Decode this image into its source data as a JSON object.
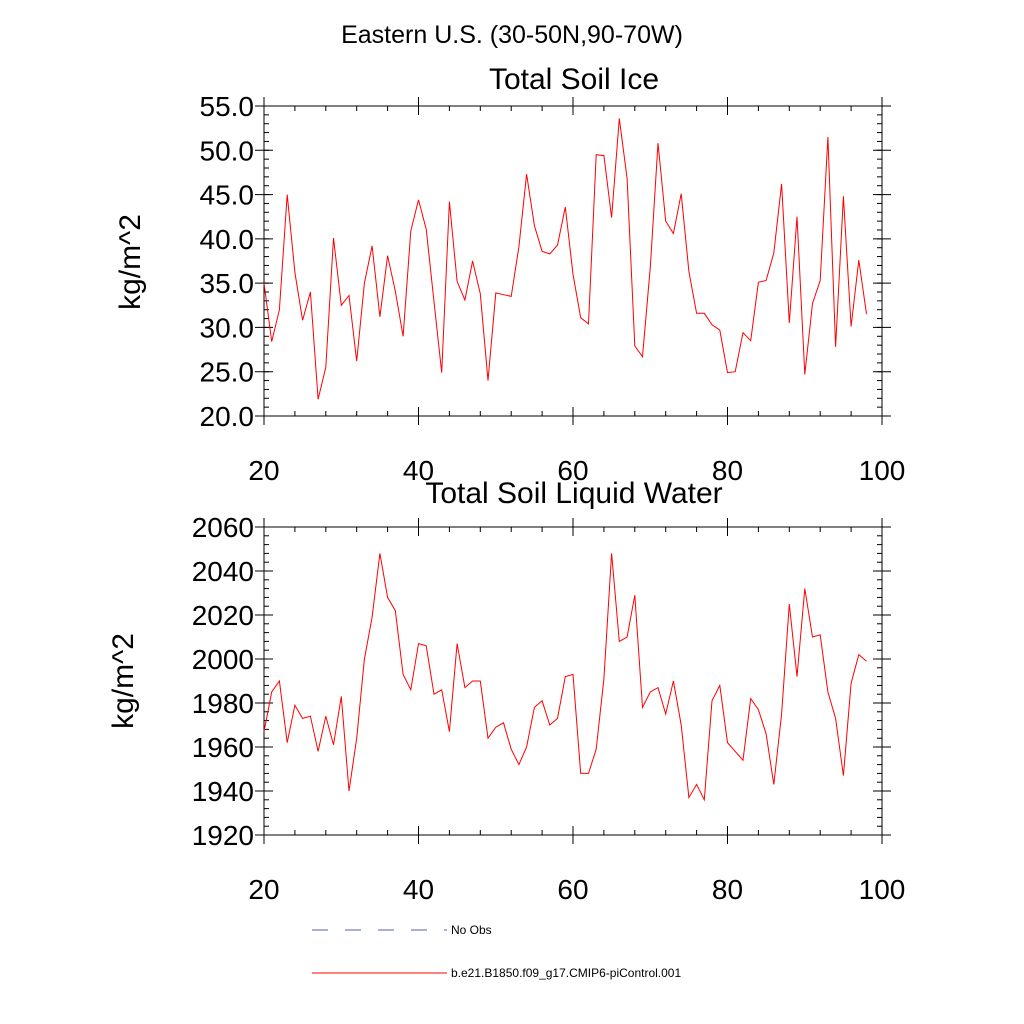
{
  "figure": {
    "suptitle": "Eastern U.S. (30-50N,90-70W)"
  },
  "chart_data": [
    {
      "type": "line",
      "title": "Total Soil Ice",
      "xlabel": "",
      "ylabel": "kg/m^2",
      "xlim": [
        20,
        100
      ],
      "ylim": [
        20,
        55
      ],
      "xticks": [
        20,
        40,
        60,
        80,
        100
      ],
      "xtick_labels": [
        "20",
        "40",
        "60",
        "80",
        "100"
      ],
      "yticks": [
        20,
        25,
        30,
        35,
        40,
        45,
        50,
        55
      ],
      "ytick_labels": [
        "20.0",
        "25.0",
        "30.0",
        "35.0",
        "40.0",
        "45.0",
        "50.0",
        "55.0"
      ],
      "series": [
        {
          "name": "b.e21.B1850.f09_g17.CMIP6-piControl.001",
          "color": "#ff0000",
          "x": [
            20,
            21,
            22,
            23,
            24,
            25,
            26,
            27,
            28,
            29,
            30,
            31,
            32,
            33,
            34,
            35,
            36,
            37,
            38,
            39,
            40,
            41,
            42,
            43,
            44,
            45,
            46,
            47,
            48,
            49,
            50,
            51,
            52,
            53,
            54,
            55,
            56,
            57,
            58,
            59,
            60,
            61,
            62,
            63,
            64,
            65,
            66,
            67,
            68,
            69,
            70,
            71,
            72,
            73,
            74,
            75,
            76,
            77,
            78,
            79,
            80,
            81,
            82,
            83,
            84,
            85,
            86,
            87,
            88,
            89,
            90,
            91,
            92,
            93,
            94,
            95,
            96,
            97,
            98
          ],
          "values": [
            35.0,
            28.4,
            32.0,
            45.0,
            36.2,
            30.8,
            34.0,
            21.9,
            25.5,
            40.1,
            32.5,
            33.6,
            26.2,
            35.0,
            39.2,
            31.2,
            38.1,
            34.1,
            29.0,
            40.9,
            44.4,
            41.1,
            32.9,
            24.9,
            44.2,
            35.2,
            33.1,
            37.5,
            33.8,
            24.0,
            33.9,
            33.7,
            33.5,
            39.1,
            47.3,
            41.5,
            38.6,
            38.3,
            39.3,
            43.6,
            36.0,
            31.1,
            30.4,
            49.5,
            49.4,
            42.4,
            53.6,
            46.8,
            27.9,
            26.7,
            36.8,
            50.8,
            42.0,
            40.6,
            45.1,
            36.3,
            31.6,
            31.6,
            30.3,
            29.7,
            24.9,
            25.0,
            29.4,
            28.5,
            35.1,
            35.3,
            38.4,
            46.2,
            30.5,
            42.5,
            24.7,
            32.7,
            35.3,
            51.5,
            27.8,
            44.8,
            30.1,
            37.6,
            31.5
          ]
        }
      ]
    },
    {
      "type": "line",
      "title": "Total Soil Liquid Water",
      "xlabel": "",
      "ylabel": "kg/m^2",
      "xlim": [
        20,
        100
      ],
      "ylim": [
        1920,
        2060
      ],
      "xticks": [
        20,
        40,
        60,
        80,
        100
      ],
      "xtick_labels": [
        "20",
        "40",
        "60",
        "80",
        "100"
      ],
      "yticks": [
        1920,
        1940,
        1960,
        1980,
        2000,
        2020,
        2040,
        2060
      ],
      "ytick_labels": [
        "1920",
        "1940",
        "1960",
        "1980",
        "2000",
        "2020",
        "2040",
        "2060"
      ],
      "series": [
        {
          "name": "b.e21.B1850.f09_g17.CMIP6-piControl.001",
          "color": "#ff0000",
          "x": [
            20,
            21,
            22,
            23,
            24,
            25,
            26,
            27,
            28,
            29,
            30,
            31,
            32,
            33,
            34,
            35,
            36,
            37,
            38,
            39,
            40,
            41,
            42,
            43,
            44,
            45,
            46,
            47,
            48,
            49,
            50,
            51,
            52,
            53,
            54,
            55,
            56,
            57,
            58,
            59,
            60,
            61,
            62,
            63,
            64,
            65,
            66,
            67,
            68,
            69,
            70,
            71,
            72,
            73,
            74,
            75,
            76,
            77,
            78,
            79,
            80,
            81,
            82,
            83,
            84,
            85,
            86,
            87,
            88,
            89,
            90,
            91,
            92,
            93,
            94,
            95,
            96,
            97,
            98
          ],
          "values": [
            1967,
            1985,
            1990,
            1962,
            1979,
            1973,
            1974,
            1958,
            1974,
            1961,
            1983,
            1940,
            1964,
            2000,
            2019,
            2048,
            2028,
            2022,
            1993,
            1986,
            2007,
            2006,
            1984,
            1986,
            1967,
            2007,
            1987,
            1990,
            1990,
            1964,
            1969,
            1971,
            1959,
            1952,
            1960,
            1978,
            1981,
            1970,
            1973,
            1992,
            1993,
            1948,
            1948,
            1959,
            1991,
            2048,
            2008,
            2010,
            2029,
            1978,
            1985,
            1987,
            1975,
            1990,
            1970,
            1937,
            1943,
            1936,
            1981,
            1988,
            1962,
            1958,
            1954,
            1982,
            1977,
            1966,
            1943,
            1975,
            2025,
            1992,
            2032,
            2010,
            2011,
            1985,
            1973,
            1947,
            1989,
            2002,
            1999
          ]
        }
      ]
    }
  ],
  "legend": {
    "items": [
      {
        "label": "No Obs",
        "color": "#5560a0",
        "style": "dashed"
      },
      {
        "label": "b.e21.B1850.f09_g17.CMIP6-piControl.001",
        "color": "#ff0000",
        "style": "solid"
      }
    ]
  }
}
